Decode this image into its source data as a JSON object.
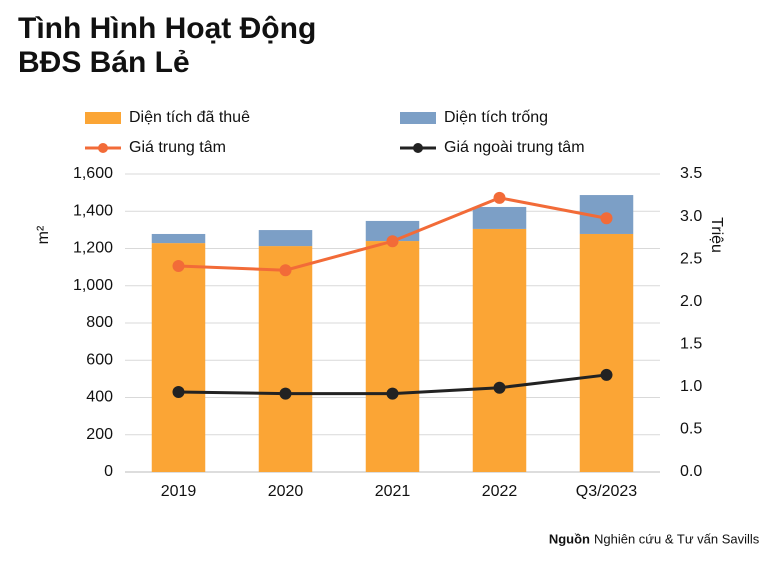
{
  "chart_data": {
    "type": "bar",
    "title": [
      "Tình Hình Hoạt Động",
      "BĐS Bán Lẻ"
    ],
    "y_label": "m²",
    "y2_label": "Triệu",
    "categories": [
      "2019",
      "2020",
      "2021",
      "2022",
      "Q3/2023"
    ],
    "series": [
      {
        "name": "Diện tích đã thuê",
        "type": "bar",
        "color": "#fba535",
        "values": [
          1229,
          1213,
          1240,
          1305,
          1278
        ]
      },
      {
        "name": "Diện tích trống",
        "type": "bar",
        "color": "#7c9fc6",
        "values": [
          49,
          86,
          108,
          118,
          209
        ]
      },
      {
        "name": "Giá trung tâm",
        "type": "line",
        "axis": "y2",
        "color": "#f26b38",
        "values": [
          2.42,
          2.37,
          2.71,
          3.22,
          2.98
        ]
      },
      {
        "name": "Giá ngoài trung tâm",
        "type": "line",
        "axis": "y2",
        "color": "#222222",
        "values": [
          0.94,
          0.92,
          0.92,
          0.99,
          1.14
        ]
      }
    ],
    "ylim": [
      0,
      1600
    ],
    "yticks": [
      0,
      200,
      400,
      600,
      800,
      {
        "value": 1000,
        "label": "1,000"
      },
      {
        "value": 1200,
        "label": "1,200"
      },
      {
        "value": 1400,
        "label": "1,400"
      },
      {
        "value": 1600,
        "label": "1,600"
      }
    ],
    "y2lim": [
      0,
      3.5
    ],
    "y2ticks": [
      {
        "value": 0,
        "label": "0.0"
      },
      0.5,
      {
        "value": 1,
        "label": "1.0"
      },
      1.5,
      {
        "value": 2,
        "label": "2.0"
      },
      2.5,
      {
        "value": 3,
        "label": "3.0"
      },
      3.5
    ],
    "grid": true,
    "source_label": "Nguồn",
    "source": "Nghiên cứu & Tư vấn Savills"
  }
}
